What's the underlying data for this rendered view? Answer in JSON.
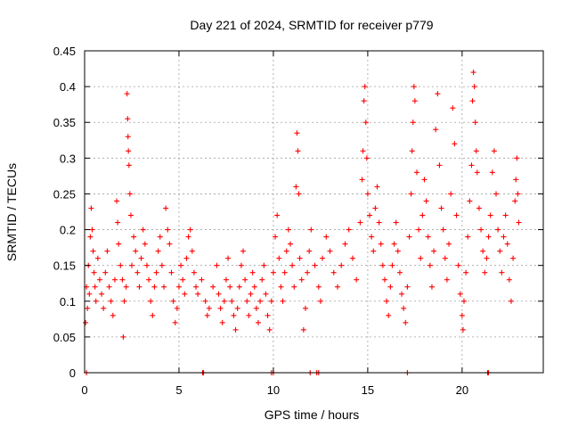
{
  "chart_data": {
    "type": "scatter",
    "title": "Day 221 of 2024, SRMTID for receiver p779",
    "xlabel": "GPS time / hours",
    "ylabel": "SRMTID / TECUs",
    "xlim": [
      0,
      24.3
    ],
    "ylim": [
      0,
      0.45
    ],
    "xticks": [
      0,
      5,
      10,
      15,
      20
    ],
    "xtick_labels": [
      "0",
      "5",
      "10",
      "15",
      "20"
    ],
    "yticks": [
      0,
      0.05,
      0.1,
      0.15,
      0.2,
      0.25,
      0.3,
      0.35,
      0.4,
      0.45
    ],
    "ytick_labels": [
      "0",
      "0.05",
      "0.1",
      "0.15",
      "0.2",
      "0.25",
      "0.3",
      "0.35",
      "0.4",
      "0.45"
    ],
    "grid": true,
    "marker": "plus",
    "color": "#ff0000",
    "series": [
      {
        "name": "SRMTID",
        "points": [
          [
            0.05,
            0.07
          ],
          [
            0.1,
            0.12
          ],
          [
            0.15,
            0.09
          ],
          [
            0.2,
            0.15
          ],
          [
            0.25,
            0.11
          ],
          [
            0.3,
            0.19
          ],
          [
            0.35,
            0.23
          ],
          [
            0.4,
            0.2
          ],
          [
            0.45,
            0.17
          ],
          [
            0.5,
            0.14
          ],
          [
            0.55,
            0.12
          ],
          [
            0.6,
            0.1
          ],
          [
            0.7,
            0.16
          ],
          [
            0.8,
            0.13
          ],
          [
            0.9,
            0.11
          ],
          [
            1.0,
            0.09
          ],
          [
            1.1,
            0.14
          ],
          [
            1.2,
            0.17
          ],
          [
            1.3,
            0.12
          ],
          [
            1.4,
            0.1
          ],
          [
            1.5,
            0.08
          ],
          [
            1.6,
            0.13
          ],
          [
            1.7,
            0.24
          ],
          [
            1.75,
            0.21
          ],
          [
            1.8,
            0.18
          ],
          [
            1.9,
            0.15
          ],
          [
            2.0,
            0.13
          ],
          [
            2.05,
            0.05
          ],
          [
            2.1,
            0.1
          ],
          [
            2.2,
            0.12
          ],
          [
            2.25,
            0.39
          ],
          [
            2.28,
            0.355
          ],
          [
            2.3,
            0.33
          ],
          [
            2.32,
            0.31
          ],
          [
            2.35,
            0.29
          ],
          [
            2.4,
            0.25
          ],
          [
            2.45,
            0.22
          ],
          [
            2.5,
            0.15
          ],
          [
            2.6,
            0.19
          ],
          [
            2.7,
            0.17
          ],
          [
            2.8,
            0.14
          ],
          [
            2.9,
            0.12
          ],
          [
            3.0,
            0.16
          ],
          [
            3.1,
            0.2
          ],
          [
            3.2,
            0.18
          ],
          [
            3.3,
            0.15
          ],
          [
            3.4,
            0.13
          ],
          [
            3.5,
            0.1
          ],
          [
            3.6,
            0.08
          ],
          [
            3.7,
            0.12
          ],
          [
            3.8,
            0.14
          ],
          [
            3.9,
            0.17
          ],
          [
            4.0,
            0.19
          ],
          [
            4.1,
            0.15
          ],
          [
            4.2,
            0.12
          ],
          [
            4.3,
            0.23
          ],
          [
            4.4,
            0.2
          ],
          [
            4.5,
            0.18
          ],
          [
            4.6,
            0.14
          ],
          [
            4.7,
            0.1
          ],
          [
            4.8,
            0.07
          ],
          [
            4.9,
            0.09
          ],
          [
            5.0,
            0.12
          ],
          [
            5.1,
            0.15
          ],
          [
            5.2,
            0.13
          ],
          [
            5.3,
            0.11
          ],
          [
            5.4,
            0.16
          ],
          [
            5.5,
            0.19
          ],
          [
            5.6,
            0.2
          ],
          [
            5.7,
            0.17
          ],
          [
            5.8,
            0.14
          ],
          [
            5.9,
            0.12
          ],
          [
            6.0,
            0.11
          ],
          [
            6.2,
            0.13
          ],
          [
            6.4,
            0.1
          ],
          [
            6.5,
            0.08
          ],
          [
            6.6,
            0.09
          ],
          [
            6.8,
            0.12
          ],
          [
            7.0,
            0.15
          ],
          [
            7.1,
            0.11
          ],
          [
            7.2,
            0.09
          ],
          [
            7.3,
            0.07
          ],
          [
            7.4,
            0.1
          ],
          [
            7.5,
            0.13
          ],
          [
            7.6,
            0.16
          ],
          [
            7.7,
            0.12
          ],
          [
            7.8,
            0.1
          ],
          [
            7.9,
            0.08
          ],
          [
            8.0,
            0.06
          ],
          [
            8.1,
            0.09
          ],
          [
            8.2,
            0.12
          ],
          [
            8.3,
            0.15
          ],
          [
            8.4,
            0.17
          ],
          [
            8.5,
            0.13
          ],
          [
            8.6,
            0.1
          ],
          [
            8.7,
            0.08
          ],
          [
            8.8,
            0.11
          ],
          [
            8.9,
            0.14
          ],
          [
            9.0,
            0.12
          ],
          [
            9.1,
            0.09
          ],
          [
            9.2,
            0.07
          ],
          [
            9.3,
            0.1
          ],
          [
            9.4,
            0.13
          ],
          [
            9.5,
            0.15
          ],
          [
            9.6,
            0.11
          ],
          [
            9.7,
            0.08
          ],
          [
            9.8,
            0.06
          ],
          [
            9.9,
            0.1
          ],
          [
            10.0,
            0.14
          ],
          [
            10.1,
            0.19
          ],
          [
            10.2,
            0.22
          ],
          [
            10.3,
            0.16
          ],
          [
            10.4,
            0.12
          ],
          [
            10.5,
            0.1
          ],
          [
            10.6,
            0.14
          ],
          [
            10.7,
            0.17
          ],
          [
            10.8,
            0.2
          ],
          [
            10.9,
            0.18
          ],
          [
            11.0,
            0.15
          ],
          [
            11.1,
            0.12
          ],
          [
            11.2,
            0.26
          ],
          [
            11.25,
            0.335
          ],
          [
            11.3,
            0.31
          ],
          [
            11.35,
            0.25
          ],
          [
            11.4,
            0.16
          ],
          [
            11.5,
            0.13
          ],
          [
            11.6,
            0.06
          ],
          [
            11.7,
            0.09
          ],
          [
            11.8,
            0.14
          ],
          [
            11.9,
            0.17
          ],
          [
            12.0,
            0.2
          ],
          [
            12.2,
            0.15
          ],
          [
            12.4,
            0.12
          ],
          [
            12.5,
            0.1
          ],
          [
            12.6,
            0.16
          ],
          [
            12.8,
            0.19
          ],
          [
            13.0,
            0.17
          ],
          [
            13.2,
            0.14
          ],
          [
            13.4,
            0.12
          ],
          [
            13.6,
            0.15
          ],
          [
            13.8,
            0.18
          ],
          [
            14.0,
            0.2
          ],
          [
            14.2,
            0.16
          ],
          [
            14.4,
            0.13
          ],
          [
            14.6,
            0.21
          ],
          [
            14.7,
            0.27
          ],
          [
            14.75,
            0.31
          ],
          [
            14.8,
            0.38
          ],
          [
            14.85,
            0.4
          ],
          [
            14.9,
            0.35
          ],
          [
            14.95,
            0.3
          ],
          [
            15.0,
            0.25
          ],
          [
            15.1,
            0.22
          ],
          [
            15.2,
            0.19
          ],
          [
            15.3,
            0.17
          ],
          [
            15.4,
            0.23
          ],
          [
            15.5,
            0.26
          ],
          [
            15.6,
            0.21
          ],
          [
            15.7,
            0.18
          ],
          [
            15.8,
            0.15
          ],
          [
            15.9,
            0.13
          ],
          [
            16.0,
            0.1
          ],
          [
            16.1,
            0.08
          ],
          [
            16.2,
            0.12
          ],
          [
            16.3,
            0.15
          ],
          [
            16.4,
            0.18
          ],
          [
            16.5,
            0.21
          ],
          [
            16.6,
            0.17
          ],
          [
            16.7,
            0.14
          ],
          [
            16.8,
            0.11
          ],
          [
            16.9,
            0.09
          ],
          [
            17.0,
            0.07
          ],
          [
            17.1,
            0.12
          ],
          [
            17.2,
            0.19
          ],
          [
            17.3,
            0.25
          ],
          [
            17.35,
            0.31
          ],
          [
            17.4,
            0.35
          ],
          [
            17.45,
            0.4
          ],
          [
            17.5,
            0.38
          ],
          [
            17.6,
            0.28
          ],
          [
            17.7,
            0.2
          ],
          [
            17.8,
            0.16
          ],
          [
            17.9,
            0.22
          ],
          [
            18.0,
            0.27
          ],
          [
            18.1,
            0.24
          ],
          [
            18.2,
            0.19
          ],
          [
            18.3,
            0.15
          ],
          [
            18.4,
            0.12
          ],
          [
            18.5,
            0.17
          ],
          [
            18.6,
            0.34
          ],
          [
            18.7,
            0.39
          ],
          [
            18.8,
            0.29
          ],
          [
            18.9,
            0.23
          ],
          [
            19.0,
            0.2
          ],
          [
            19.1,
            0.16
          ],
          [
            19.2,
            0.13
          ],
          [
            19.3,
            0.18
          ],
          [
            19.4,
            0.25
          ],
          [
            19.5,
            0.37
          ],
          [
            19.6,
            0.32
          ],
          [
            19.7,
            0.22
          ],
          [
            19.8,
            0.15
          ],
          [
            19.9,
            0.11
          ],
          [
            20.0,
            0.08
          ],
          [
            20.05,
            0.06
          ],
          [
            20.1,
            0.1
          ],
          [
            20.2,
            0.14
          ],
          [
            20.3,
            0.19
          ],
          [
            20.4,
            0.24
          ],
          [
            20.5,
            0.29
          ],
          [
            20.55,
            0.38
          ],
          [
            20.6,
            0.42
          ],
          [
            20.65,
            0.4
          ],
          [
            20.7,
            0.35
          ],
          [
            20.75,
            0.31
          ],
          [
            20.8,
            0.28
          ],
          [
            20.9,
            0.23
          ],
          [
            21.0,
            0.2
          ],
          [
            21.1,
            0.17
          ],
          [
            21.2,
            0.14
          ],
          [
            21.3,
            0.16
          ],
          [
            21.4,
            0.19
          ],
          [
            21.5,
            0.22
          ],
          [
            21.6,
            0.28
          ],
          [
            21.7,
            0.31
          ],
          [
            21.8,
            0.25
          ],
          [
            21.9,
            0.2
          ],
          [
            22.0,
            0.17
          ],
          [
            22.1,
            0.14
          ],
          [
            22.2,
            0.19
          ],
          [
            22.3,
            0.22
          ],
          [
            22.4,
            0.18
          ],
          [
            22.5,
            0.13
          ],
          [
            22.6,
            0.1
          ],
          [
            22.7,
            0.16
          ],
          [
            22.8,
            0.24
          ],
          [
            22.85,
            0.27
          ],
          [
            22.9,
            0.3
          ],
          [
            22.95,
            0.25
          ],
          [
            23.0,
            0.21
          ]
        ],
        "zero_points": [
          0.1,
          6.25,
          6.3,
          9.9,
          10.0,
          11.95,
          12.3,
          12.4,
          17.1,
          21.35,
          21.4
        ]
      }
    ]
  }
}
